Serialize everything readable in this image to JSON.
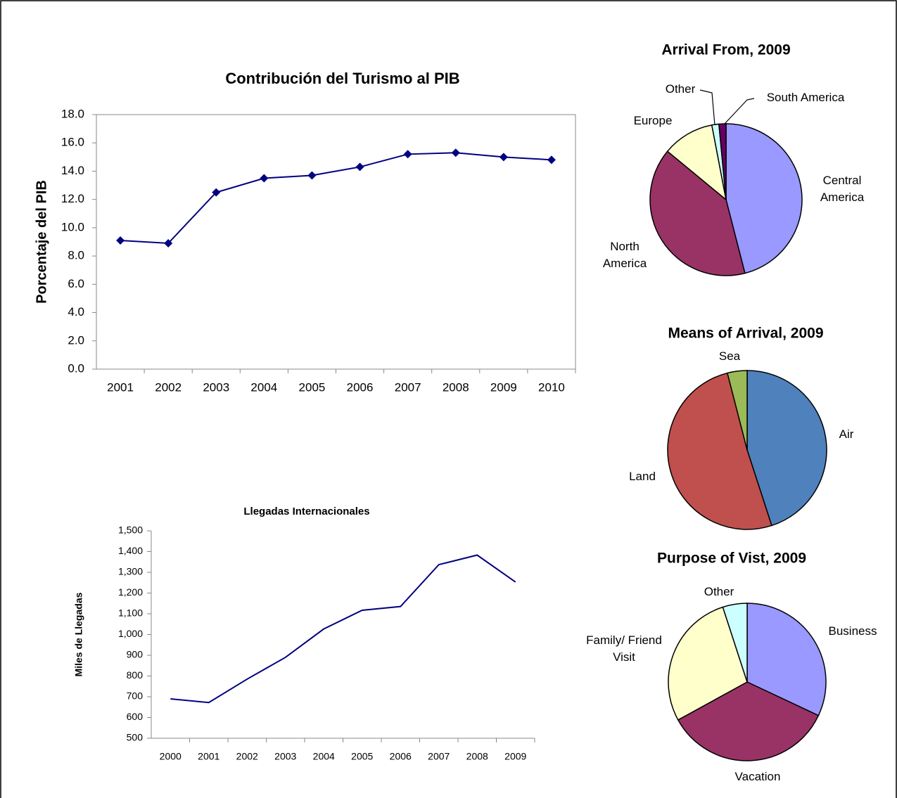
{
  "chart_data": [
    {
      "type": "line",
      "title": "Contribución del Turismo al PIB",
      "y_label": "Porcentaje del PIB",
      "categories": [
        "2001",
        "2002",
        "2003",
        "2004",
        "2005",
        "2006",
        "2007",
        "2008",
        "2009",
        "2010"
      ],
      "values": [
        9.1,
        8.9,
        12.5,
        13.5,
        13.7,
        14.3,
        15.2,
        15.3,
        15.0,
        14.8
      ],
      "color": "#000080",
      "marker": "diamond",
      "ylim": [
        0,
        18
      ],
      "yticks": [
        {
          "value": 0,
          "label": "0.0"
        },
        {
          "value": 2,
          "label": "2.0"
        },
        {
          "value": 4,
          "label": "4.0"
        },
        {
          "value": 6,
          "label": "6.0"
        },
        {
          "value": 8,
          "label": "8.0"
        },
        {
          "value": 10,
          "label": "10.0"
        },
        {
          "value": 12,
          "label": "12.0"
        },
        {
          "value": 14,
          "label": "14.0"
        },
        {
          "value": 16,
          "label": "16.0"
        },
        {
          "value": 18,
          "label": "18.0"
        }
      ]
    },
    {
      "type": "line",
      "title": "Llegadas Internacionales",
      "y_label": "Miles de Llegadas",
      "categories": [
        "2000",
        "2001",
        "2002",
        "2003",
        "2004",
        "2005",
        "2006",
        "2007",
        "2008",
        "2009"
      ],
      "values": [
        690,
        672,
        785,
        890,
        1027,
        1117,
        1135,
        1337,
        1383,
        1253
      ],
      "color": "#000080",
      "ylim": [
        500,
        1500
      ],
      "yticks": [
        500,
        600,
        700,
        800,
        900,
        {
          "value": 1000,
          "label": "1,000"
        },
        {
          "value": 1100,
          "label": "1,100"
        },
        {
          "value": 1200,
          "label": "1,200"
        },
        {
          "value": 1300,
          "label": "1,300"
        },
        {
          "value": 1400,
          "label": "1,400"
        },
        {
          "value": 1500,
          "label": "1,500"
        }
      ]
    },
    {
      "type": "pie",
      "title": "Arrival From, 2009",
      "categories": [
        "Central America",
        "North America",
        "Europe",
        "Other",
        "South America"
      ],
      "values": [
        46,
        40,
        11,
        1.5,
        1.5
      ],
      "colors": [
        "#9999ff",
        "#993366",
        "#ffffcc",
        "#ccffff",
        "#660066"
      ]
    },
    {
      "type": "pie",
      "title": "Means of Arrival, 2009",
      "categories": [
        "Air",
        "Land",
        "Sea"
      ],
      "values": [
        45,
        51,
        4
      ],
      "colors": [
        "#4f81bd",
        "#c0504d",
        "#9bbb59"
      ]
    },
    {
      "type": "pie",
      "title": "Purpose of Vist, 2009",
      "categories": [
        "Business",
        "Vacation",
        "Family/ Friend Visit",
        "Other"
      ],
      "values": [
        32,
        35,
        28,
        5
      ],
      "colors": [
        "#9999ff",
        "#993366",
        "#ffffcc",
        "#ccffff"
      ]
    }
  ]
}
